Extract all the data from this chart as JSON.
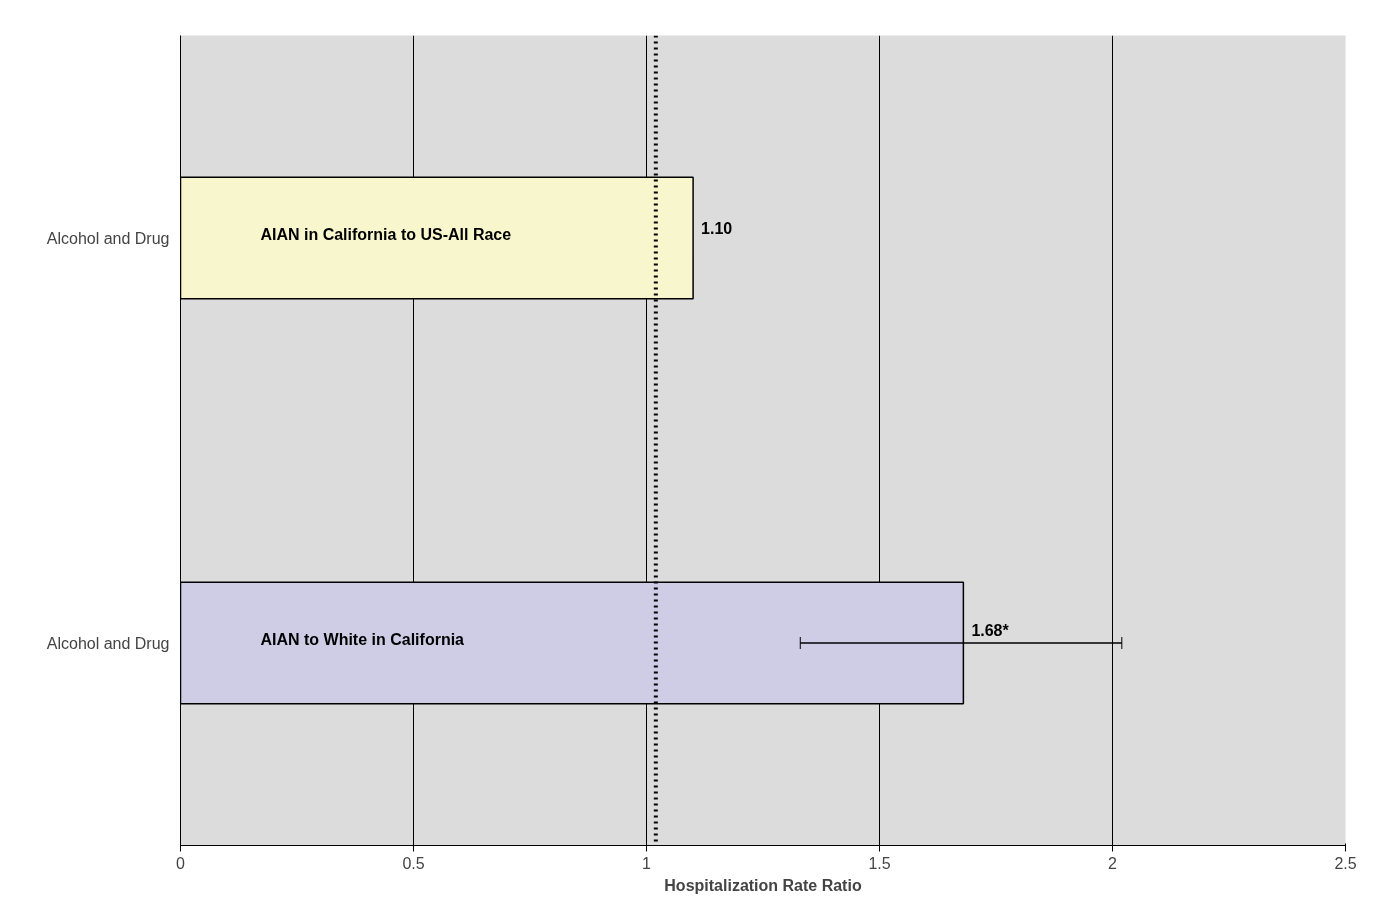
{
  "chart_data": {
    "type": "bar",
    "orientation": "horizontal",
    "categories": [
      "Alcohol and Drug",
      "Alcohol and Drug"
    ],
    "values": [
      1.1,
      1.68
    ],
    "colors": [
      "#f8f6cc",
      "#cfcde6"
    ],
    "errors": [
      null,
      [
        1.33,
        2.02
      ]
    ],
    "value_labels": [
      "1.10",
      "1.68*"
    ],
    "annotations": [
      "AIAN in California to US-All Race",
      "AIAN to White in California"
    ],
    "xlabel": "Hospitalization Rate Ratio",
    "xlim": [
      0,
      2.5
    ],
    "xticks": [
      0,
      0.5,
      1,
      1.5,
      2,
      2.5
    ],
    "ref_lines": [
      {
        "axis": "x",
        "value": 1.02,
        "line_style": "dotted",
        "color": "#000000"
      }
    ],
    "grid": "x"
  }
}
